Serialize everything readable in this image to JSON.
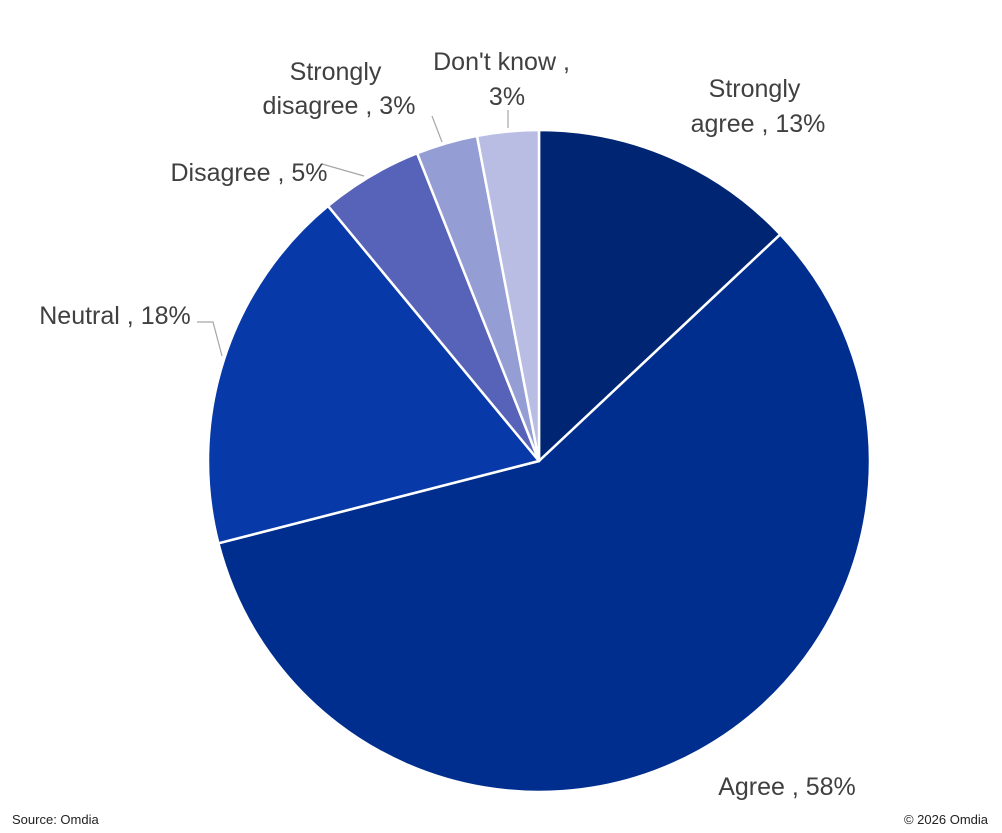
{
  "chart_data": {
    "type": "pie",
    "slices": [
      {
        "label": "Strongly agree",
        "value": 13,
        "value_label": "13%",
        "color": "#002673"
      },
      {
        "label": "Agree",
        "value": 58,
        "value_label": "58%",
        "color": "#002e8f"
      },
      {
        "label": "Neutral",
        "value": 18,
        "value_label": "18%",
        "color": "#0839a8"
      },
      {
        "label": "Disagree",
        "value": 5,
        "value_label": "5%",
        "color": "#5763b8"
      },
      {
        "label": "Strongly disagree",
        "value": 3,
        "value_label": "3%",
        "color": "#959ed4"
      },
      {
        "label": "Don't know",
        "value": 3,
        "value_label": "3%",
        "color": "#b9bde3"
      }
    ],
    "legend": "none",
    "start": "12 o'clock, clockwise"
  },
  "footer": {
    "source": "Source: Omdia",
    "copyright": "© 2026 Omdia"
  }
}
